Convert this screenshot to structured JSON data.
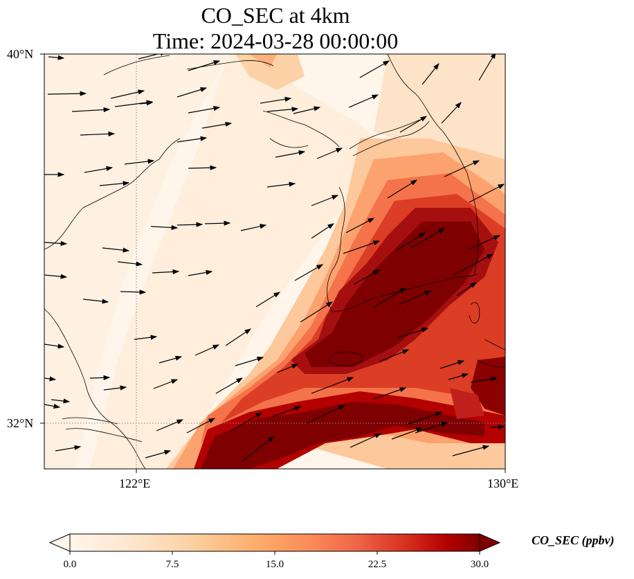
{
  "title": {
    "line1": "CO_SEC at 4km",
    "line2": "Time: 2024-03-28 00:00:00"
  },
  "axes": {
    "lat_ticks": [
      "40°N",
      "32°N"
    ],
    "lon_ticks": [
      "122°E",
      "130°E"
    ],
    "lat_range": [
      31,
      40
    ],
    "lon_range": [
      120,
      130
    ],
    "gridlines": "dotted"
  },
  "field": {
    "variable": "CO_SEC",
    "description_levels": "high concentration plume over southwestern Korea and ocean south of it"
  },
  "colorbar": {
    "label": "CO_SEC (ppbv)",
    "ticks": [
      "0.0",
      "7.5",
      "15.0",
      "22.5",
      "30.0"
    ],
    "min": 0,
    "max": 30,
    "colormap": [
      "#fff5eb",
      "#fee6ce",
      "#fdd0a2",
      "#fdae6b",
      "#fd8d3c",
      "#f16913",
      "#d94801",
      "#a63603",
      "#7f0000"
    ],
    "extend": "both"
  },
  "colors": {
    "land_outline": "#000000",
    "wind_arrow": "#000000",
    "grid": "#888888"
  }
}
